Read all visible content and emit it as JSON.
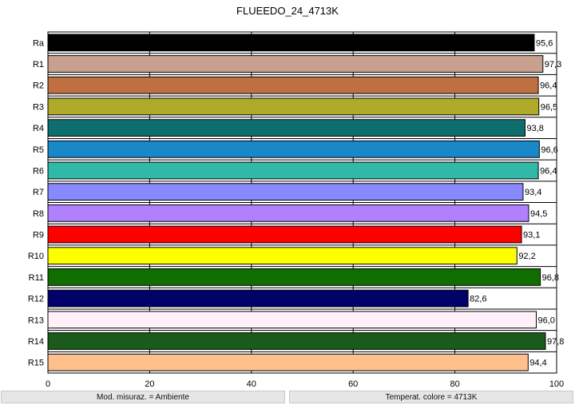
{
  "chart_data": {
    "type": "bar",
    "orientation": "horizontal",
    "title": "FLUEEDO_24_4713K",
    "xlim": [
      0,
      100
    ],
    "xticks": [
      0,
      20,
      40,
      60,
      80,
      100
    ],
    "grid": true,
    "categories": [
      "Ra",
      "R1",
      "R2",
      "R3",
      "R4",
      "R5",
      "R6",
      "R7",
      "R8",
      "R9",
      "R10",
      "R11",
      "R12",
      "R13",
      "R14",
      "R15"
    ],
    "values": [
      95.6,
      97.3,
      96.4,
      96.5,
      93.8,
      96.6,
      96.4,
      93.4,
      94.5,
      93.1,
      92.2,
      96.8,
      82.6,
      96.0,
      97.8,
      94.4
    ],
    "value_labels": [
      "95,6",
      "97,3",
      "96,4",
      "96,5",
      "93,8",
      "96,6",
      "96,4",
      "93,4",
      "94,5",
      "93,1",
      "92,2",
      "96,8",
      "82,6",
      "96,0",
      "97,8",
      "94,4"
    ],
    "colors": [
      "#000000",
      "#c8a090",
      "#c07040",
      "#b0aa2a",
      "#0e6e6e",
      "#1888c8",
      "#30b8a8",
      "#8888ff",
      "#b080ff",
      "#ff0000",
      "#ffff00",
      "#106e00",
      "#000068",
      "#fff0fa",
      "#1a5a1a",
      "#ffc08c"
    ]
  },
  "status": {
    "measure_mode": "Mod. misuraz. = Ambiente",
    "color_temp": "Temperat. colore = 4713K"
  }
}
